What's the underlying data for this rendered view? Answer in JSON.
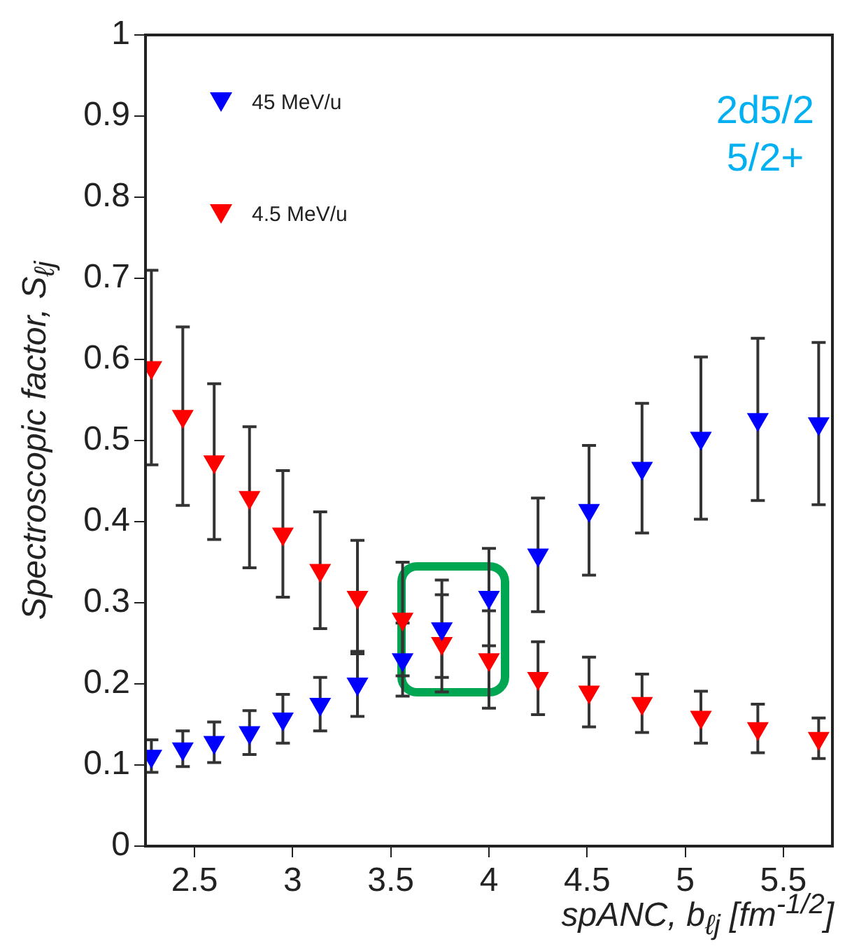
{
  "chart_data": {
    "type": "scatter",
    "xlabel": "spANC,  b$_{ℓj}$  [fm$^{-1/2}$]",
    "ylabel": "Spectroscopic  factor, S$_{ℓj}$",
    "x": [
      2.28,
      2.44,
      2.6,
      2.78,
      2.95,
      3.14,
      3.33,
      3.56,
      3.76,
      4.0,
      4.25,
      4.51,
      4.78,
      5.08,
      5.37,
      5.68
    ],
    "series": [
      {
        "name": "45 MeV/u",
        "color": "#0000ff",
        "values": [
          0.111,
          0.12,
          0.128,
          0.14,
          0.157,
          0.175,
          0.2,
          0.23,
          0.268,
          0.307,
          0.359,
          0.414,
          0.466,
          0.503,
          0.526,
          0.521
        ],
        "errors": [
          0.02,
          0.022,
          0.025,
          0.027,
          0.03,
          0.033,
          0.04,
          0.045,
          0.06,
          0.06,
          0.07,
          0.08,
          0.08,
          0.1,
          0.1,
          0.1
        ]
      },
      {
        "name": "4.5 MeV/u",
        "color": "#ff0000",
        "values": [
          0.59,
          0.53,
          0.474,
          0.43,
          0.385,
          0.34,
          0.307,
          0.28,
          0.25,
          0.23,
          0.207,
          0.19,
          0.176,
          0.159,
          0.145,
          0.133
        ],
        "errors": [
          0.12,
          0.11,
          0.096,
          0.087,
          0.078,
          0.072,
          0.07,
          0.07,
          0.06,
          0.06,
          0.045,
          0.043,
          0.036,
          0.032,
          0.03,
          0.025
        ]
      }
    ],
    "xlim": [
      2.25,
      5.75
    ],
    "xticks": [
      2.5,
      3,
      3.5,
      4,
      4.5,
      5,
      5.5
    ],
    "ylim": [
      0,
      1
    ],
    "yticks": [
      0,
      0.1,
      0.2,
      0.3,
      0.4,
      0.5,
      0.6,
      0.7,
      0.8,
      0.9,
      1
    ],
    "annotations": [
      "2d5/2",
      "5/2+"
    ],
    "marker": "triangle",
    "legend": "top left",
    "grid": false
  }
}
